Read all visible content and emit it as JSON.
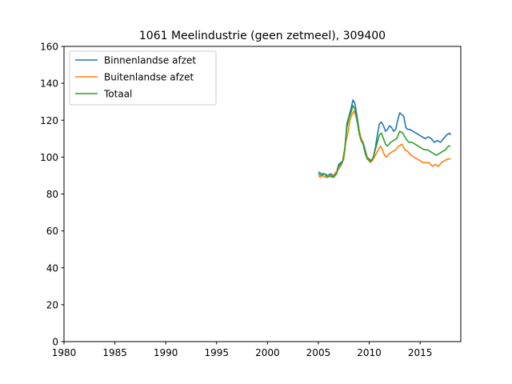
{
  "chart_data": {
    "type": "line",
    "title": "1061 Meelindustrie (geen zetmeel), 309400",
    "xlabel": "",
    "ylabel": "",
    "xlim": [
      1980,
      2019
    ],
    "ylim": [
      0,
      160
    ],
    "x_ticks": [
      1980,
      1985,
      1990,
      1995,
      2000,
      2005,
      2010,
      2015
    ],
    "y_ticks": [
      0,
      20,
      40,
      60,
      80,
      100,
      120,
      140,
      160
    ],
    "grid": false,
    "legend_position": "top-left",
    "series": [
      {
        "name": "Binnenlandse afzet",
        "color": "#1f77b4",
        "points": [
          [
            2005.0,
            92
          ],
          [
            2005.3,
            91
          ],
          [
            2005.6,
            91
          ],
          [
            2005.9,
            90
          ],
          [
            2006.2,
            91
          ],
          [
            2006.5,
            90
          ],
          [
            2006.8,
            92
          ],
          [
            2007.0,
            96
          ],
          [
            2007.2,
            97
          ],
          [
            2007.4,
            98
          ],
          [
            2007.6,
            104
          ],
          [
            2007.8,
            118
          ],
          [
            2008.0,
            122
          ],
          [
            2008.2,
            126
          ],
          [
            2008.4,
            131
          ],
          [
            2008.6,
            129
          ],
          [
            2008.8,
            122
          ],
          [
            2009.0,
            115
          ],
          [
            2009.2,
            110
          ],
          [
            2009.4,
            108
          ],
          [
            2009.6,
            104
          ],
          [
            2009.8,
            100
          ],
          [
            2010.0,
            99
          ],
          [
            2010.2,
            98
          ],
          [
            2010.4,
            100
          ],
          [
            2010.6,
            105
          ],
          [
            2010.8,
            112
          ],
          [
            2011.0,
            118
          ],
          [
            2011.2,
            119
          ],
          [
            2011.4,
            117
          ],
          [
            2011.6,
            114
          ],
          [
            2011.8,
            115
          ],
          [
            2012.0,
            117
          ],
          [
            2012.2,
            116
          ],
          [
            2012.4,
            114
          ],
          [
            2012.6,
            115
          ],
          [
            2012.8,
            120
          ],
          [
            2013.0,
            124
          ],
          [
            2013.2,
            123
          ],
          [
            2013.4,
            122
          ],
          [
            2013.6,
            116
          ],
          [
            2013.8,
            115
          ],
          [
            2014.0,
            115
          ],
          [
            2014.3,
            114
          ],
          [
            2014.6,
            113
          ],
          [
            2014.9,
            112
          ],
          [
            2015.2,
            111
          ],
          [
            2015.5,
            110
          ],
          [
            2015.8,
            111
          ],
          [
            2016.1,
            110
          ],
          [
            2016.4,
            108
          ],
          [
            2016.7,
            109
          ],
          [
            2017.0,
            108
          ],
          [
            2017.3,
            110
          ],
          [
            2017.6,
            112
          ],
          [
            2017.9,
            113
          ],
          [
            2018.0,
            112
          ]
        ]
      },
      {
        "name": "Buitenlandse afzet",
        "color": "#ff7f0e",
        "points": [
          [
            2005.0,
            90
          ],
          [
            2005.2,
            89
          ],
          [
            2005.4,
            90
          ],
          [
            2005.7,
            89
          ],
          [
            2006.0,
            90
          ],
          [
            2006.3,
            89
          ],
          [
            2006.6,
            91
          ],
          [
            2006.9,
            93
          ],
          [
            2007.2,
            95
          ],
          [
            2007.5,
            99
          ],
          [
            2007.7,
            108
          ],
          [
            2007.9,
            113
          ],
          [
            2008.1,
            120
          ],
          [
            2008.3,
            123
          ],
          [
            2008.5,
            125
          ],
          [
            2008.7,
            122
          ],
          [
            2008.9,
            117
          ],
          [
            2009.1,
            112
          ],
          [
            2009.3,
            109
          ],
          [
            2009.5,
            105
          ],
          [
            2009.7,
            101
          ],
          [
            2009.9,
            99
          ],
          [
            2010.1,
            97
          ],
          [
            2010.3,
            98
          ],
          [
            2010.5,
            100
          ],
          [
            2010.7,
            102
          ],
          [
            2010.9,
            104
          ],
          [
            2011.1,
            106
          ],
          [
            2011.3,
            104
          ],
          [
            2011.5,
            101
          ],
          [
            2011.7,
            100
          ],
          [
            2012.0,
            102
          ],
          [
            2012.3,
            103
          ],
          [
            2012.6,
            104
          ],
          [
            2012.9,
            106
          ],
          [
            2013.2,
            107
          ],
          [
            2013.5,
            104
          ],
          [
            2013.8,
            103
          ],
          [
            2014.1,
            101
          ],
          [
            2014.4,
            100
          ],
          [
            2014.7,
            99
          ],
          [
            2015.0,
            98
          ],
          [
            2015.3,
            97
          ],
          [
            2015.6,
            97
          ],
          [
            2015.9,
            97
          ],
          [
            2016.2,
            95
          ],
          [
            2016.5,
            96
          ],
          [
            2016.8,
            95
          ],
          [
            2017.1,
            97
          ],
          [
            2017.4,
            98
          ],
          [
            2017.7,
            99
          ],
          [
            2018.0,
            99
          ]
        ]
      },
      {
        "name": "Totaal",
        "color": "#2ca02c",
        "points": [
          [
            2005.0,
            91
          ],
          [
            2005.3,
            90
          ],
          [
            2005.6,
            91
          ],
          [
            2005.9,
            89
          ],
          [
            2006.2,
            90
          ],
          [
            2006.5,
            89
          ],
          [
            2006.8,
            91
          ],
          [
            2007.0,
            95
          ],
          [
            2007.2,
            96
          ],
          [
            2007.4,
            98
          ],
          [
            2007.6,
            105
          ],
          [
            2007.8,
            116
          ],
          [
            2008.0,
            121
          ],
          [
            2008.2,
            124
          ],
          [
            2008.4,
            128
          ],
          [
            2008.6,
            126
          ],
          [
            2008.8,
            120
          ],
          [
            2009.0,
            113
          ],
          [
            2009.2,
            109
          ],
          [
            2009.4,
            107
          ],
          [
            2009.6,
            102
          ],
          [
            2009.8,
            99
          ],
          [
            2010.0,
            98
          ],
          [
            2010.2,
            98
          ],
          [
            2010.4,
            100
          ],
          [
            2010.6,
            104
          ],
          [
            2010.8,
            108
          ],
          [
            2011.0,
            112
          ],
          [
            2011.2,
            113
          ],
          [
            2011.4,
            110
          ],
          [
            2011.6,
            107
          ],
          [
            2011.8,
            106
          ],
          [
            2012.1,
            108
          ],
          [
            2012.4,
            109
          ],
          [
            2012.7,
            110
          ],
          [
            2013.0,
            114
          ],
          [
            2013.3,
            113
          ],
          [
            2013.6,
            110
          ],
          [
            2013.9,
            108
          ],
          [
            2014.2,
            108
          ],
          [
            2014.5,
            107
          ],
          [
            2014.8,
            106
          ],
          [
            2015.1,
            105
          ],
          [
            2015.4,
            104
          ],
          [
            2015.7,
            104
          ],
          [
            2016.0,
            103
          ],
          [
            2016.3,
            102
          ],
          [
            2016.6,
            101
          ],
          [
            2016.9,
            102
          ],
          [
            2017.2,
            103
          ],
          [
            2017.5,
            104
          ],
          [
            2017.8,
            106
          ],
          [
            2018.0,
            106
          ]
        ]
      }
    ]
  }
}
